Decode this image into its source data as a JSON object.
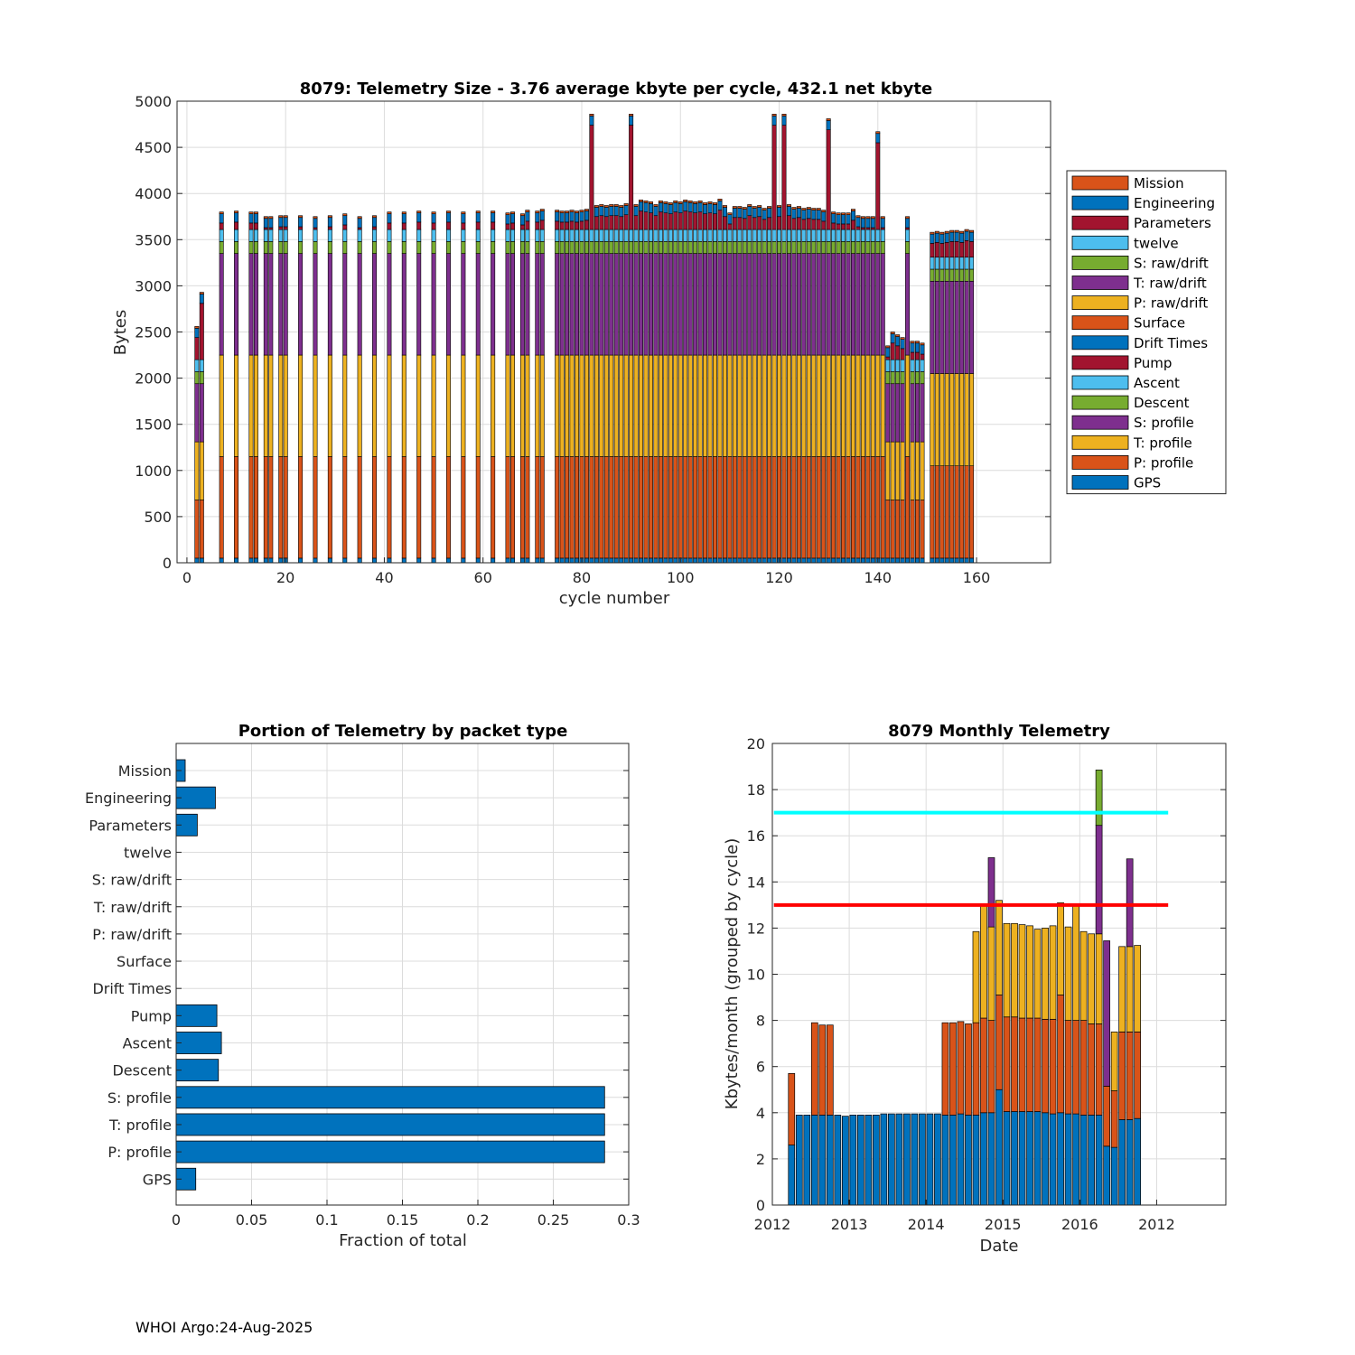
{
  "footer": "WHOI Argo:24-Aug-2025",
  "colors": {
    "Mission": "#d95319",
    "Engineering": "#0072bd",
    "Parameters": "#a2142f",
    "twelve": "#4dbeee",
    "S: raw/drift": "#77ac30",
    "T: raw/drift": "#7e2f8e",
    "P: raw/drift": "#edb120",
    "Surface": "#d95319",
    "Drift Times": "#0072bd",
    "Pump": "#a2142f",
    "Ascent": "#4dbeee",
    "Descent": "#77ac30",
    "S: profile": "#7e2f8e",
    "T: profile": "#edb120",
    "P: profile": "#d95319",
    "GPS": "#0072bd",
    "line_cyan": "#00ffff",
    "line_red": "#ff0000"
  },
  "chart_data": [
    {
      "id": "telemetry-size",
      "type": "bar",
      "stacked": true,
      "title": "8079: Telemetry Size - 3.76 average kbyte per cycle,  432.1 net kbyte",
      "xlabel": "cycle number",
      "ylabel": "Bytes",
      "xlim": [
        -2,
        175
      ],
      "ylim": [
        0,
        5000
      ],
      "xticks": [
        0,
        20,
        40,
        60,
        80,
        100,
        120,
        140,
        160
      ],
      "yticks": [
        0,
        500,
        1000,
        1500,
        2000,
        2500,
        3000,
        3500,
        4000,
        4500,
        5000
      ],
      "legend_position": "outside-right",
      "legend": [
        "Mission",
        "Engineering",
        "Parameters",
        "twelve",
        "S: raw/drift",
        "T: raw/drift",
        "P: raw/drift",
        "Surface",
        "Drift Times",
        "Pump",
        "Ascent",
        "Descent",
        "S: profile",
        "T: profile",
        "P: profile",
        "GPS"
      ],
      "stack_order_bottom_to_top": [
        "GPS",
        "P: profile",
        "T: profile",
        "S: profile",
        "Descent",
        "Ascent",
        "Pump",
        "Engineering",
        "Mission"
      ],
      "profiles": {
        "normal": {
          "GPS": 50,
          "P: profile": 1100,
          "T: profile": 1100,
          "S: profile": 1100,
          "Descent": 130,
          "Ascent": 130,
          "Pump": 90,
          "Engineering": 100,
          "Mission": 20
        },
        "low": {
          "GPS": 50,
          "P: profile": 630,
          "T: profile": 630,
          "S: profile": 630,
          "Descent": 130,
          "Ascent": 130,
          "Pump": 90,
          "Engineering": 100,
          "Mission": 20
        },
        "half": {
          "GPS": 50,
          "P: profile": 1000,
          "T: profile": 1000,
          "S: profile": 1000,
          "Descent": 130,
          "Ascent": 130,
          "Pump": 90,
          "Engineering": 100,
          "Mission": 20
        }
      },
      "cycles": [
        {
          "x": 2,
          "total": 2560,
          "profile": "low"
        },
        {
          "x": 3,
          "total": 2930,
          "profile": "low"
        },
        {
          "x": 7,
          "total": 3800
        },
        {
          "x": 10,
          "total": 3810
        },
        {
          "x": 13,
          "total": 3800
        },
        {
          "x": 14,
          "total": 3800
        },
        {
          "x": 16,
          "total": 3750
        },
        {
          "x": 17,
          "total": 3750
        },
        {
          "x": 19,
          "total": 3760
        },
        {
          "x": 20,
          "total": 3760
        },
        {
          "x": 23,
          "total": 3760
        },
        {
          "x": 26,
          "total": 3750
        },
        {
          "x": 29,
          "total": 3760
        },
        {
          "x": 32,
          "total": 3780
        },
        {
          "x": 35,
          "total": 3750
        },
        {
          "x": 38,
          "total": 3760
        },
        {
          "x": 41,
          "total": 3800
        },
        {
          "x": 44,
          "total": 3800
        },
        {
          "x": 47,
          "total": 3810
        },
        {
          "x": 50,
          "total": 3800
        },
        {
          "x": 53,
          "total": 3810
        },
        {
          "x": 56,
          "total": 3800
        },
        {
          "x": 59,
          "total": 3810
        },
        {
          "x": 62,
          "total": 3810
        },
        {
          "x": 65,
          "total": 3790
        },
        {
          "x": 66,
          "total": 3800
        },
        {
          "x": 68,
          "total": 3780
        },
        {
          "x": 69,
          "total": 3820
        },
        {
          "x": 71,
          "total": 3810
        },
        {
          "x": 72,
          "total": 3830
        },
        {
          "x": 75,
          "total": 3820
        },
        {
          "x": 76,
          "total": 3810
        },
        {
          "x": 77,
          "total": 3810
        },
        {
          "x": 78,
          "total": 3820
        },
        {
          "x": 79,
          "total": 3810
        },
        {
          "x": 80,
          "total": 3820
        },
        {
          "x": 81,
          "total": 3830
        },
        {
          "x": 82,
          "total": 4860
        },
        {
          "x": 83,
          "total": 3870
        },
        {
          "x": 84,
          "total": 3880
        },
        {
          "x": 85,
          "total": 3870
        },
        {
          "x": 86,
          "total": 3880
        },
        {
          "x": 87,
          "total": 3880
        },
        {
          "x": 88,
          "total": 3870
        },
        {
          "x": 89,
          "total": 3890
        },
        {
          "x": 90,
          "total": 4860
        },
        {
          "x": 91,
          "total": 3880
        },
        {
          "x": 92,
          "total": 3930
        },
        {
          "x": 93,
          "total": 3920
        },
        {
          "x": 94,
          "total": 3910
        },
        {
          "x": 95,
          "total": 3880
        },
        {
          "x": 96,
          "total": 3920
        },
        {
          "x": 97,
          "total": 3910
        },
        {
          "x": 98,
          "total": 3900
        },
        {
          "x": 99,
          "total": 3920
        },
        {
          "x": 100,
          "total": 3910
        },
        {
          "x": 101,
          "total": 3930
        },
        {
          "x": 102,
          "total": 3920
        },
        {
          "x": 103,
          "total": 3910
        },
        {
          "x": 104,
          "total": 3920
        },
        {
          "x": 105,
          "total": 3900
        },
        {
          "x": 106,
          "total": 3910
        },
        {
          "x": 107,
          "total": 3900
        },
        {
          "x": 108,
          "total": 3940
        },
        {
          "x": 109,
          "total": 3870
        },
        {
          "x": 110,
          "total": 3790
        },
        {
          "x": 111,
          "total": 3860
        },
        {
          "x": 112,
          "total": 3860
        },
        {
          "x": 113,
          "total": 3850
        },
        {
          "x": 114,
          "total": 3880
        },
        {
          "x": 115,
          "total": 3860
        },
        {
          "x": 116,
          "total": 3870
        },
        {
          "x": 117,
          "total": 3840
        },
        {
          "x": 118,
          "total": 3860
        },
        {
          "x": 119,
          "total": 4860
        },
        {
          "x": 120,
          "total": 3870
        },
        {
          "x": 121,
          "total": 4860
        },
        {
          "x": 122,
          "total": 3880
        },
        {
          "x": 123,
          "total": 3850
        },
        {
          "x": 124,
          "total": 3860
        },
        {
          "x": 125,
          "total": 3840
        },
        {
          "x": 126,
          "total": 3850
        },
        {
          "x": 127,
          "total": 3840
        },
        {
          "x": 128,
          "total": 3840
        },
        {
          "x": 129,
          "total": 3820
        },
        {
          "x": 130,
          "total": 4810
        },
        {
          "x": 131,
          "total": 3800
        },
        {
          "x": 132,
          "total": 3790
        },
        {
          "x": 133,
          "total": 3790
        },
        {
          "x": 134,
          "total": 3790
        },
        {
          "x": 135,
          "total": 3830
        },
        {
          "x": 136,
          "total": 3760
        },
        {
          "x": 137,
          "total": 3740
        },
        {
          "x": 138,
          "total": 3690
        },
        {
          "x": 139,
          "total": 3730
        },
        {
          "x": 140,
          "total": 4670
        },
        {
          "x": 141,
          "total": 3600
        },
        {
          "x": 142,
          "total": 2350,
          "profile": "low"
        },
        {
          "x": 143,
          "total": 2500,
          "profile": "low"
        },
        {
          "x": 144,
          "total": 2470,
          "profile": "low"
        },
        {
          "x": 145,
          "total": 2440,
          "profile": "low"
        },
        {
          "x": 146,
          "total": 3600
        },
        {
          "x": 147,
          "total": 2400,
          "profile": "low"
        },
        {
          "x": 148,
          "total": 2400,
          "profile": "low"
        },
        {
          "x": 149,
          "total": 2380,
          "profile": "low"
        },
        {
          "x": 151,
          "total": 3580,
          "profile": "half"
        },
        {
          "x": 152,
          "total": 3590,
          "profile": "half"
        },
        {
          "x": 153,
          "total": 3580,
          "profile": "half"
        },
        {
          "x": 154,
          "total": 3590,
          "profile": "half"
        },
        {
          "x": 155,
          "total": 3600,
          "profile": "half"
        },
        {
          "x": 156,
          "total": 3600,
          "profile": "half"
        },
        {
          "x": 157,
          "total": 3590,
          "profile": "half"
        },
        {
          "x": 158,
          "total": 3610,
          "profile": "half"
        },
        {
          "x": 159,
          "total": 3600,
          "profile": "half"
        }
      ]
    },
    {
      "id": "portion-by-type",
      "type": "bar",
      "orientation": "horizontal",
      "title": "Portion of Telemetry by packet type",
      "xlabel": "Fraction of total",
      "ylabel": "",
      "xlim": [
        0,
        0.3
      ],
      "xticks": [
        0,
        0.05,
        0.1,
        0.15,
        0.2,
        0.25,
        0.3
      ],
      "xtick_labels": [
        "0",
        "0.05",
        "0.1",
        "0.15",
        "0.2",
        "0.25",
        "0.3"
      ],
      "categories": [
        "Mission",
        "Engineering",
        "Parameters",
        "twelve",
        "S: raw/drift",
        "T: raw/drift",
        "P: raw/drift",
        "Surface",
        "Drift Times",
        "Pump",
        "Ascent",
        "Descent",
        "S: profile",
        "T: profile",
        "P: profile",
        "GPS"
      ],
      "values": [
        0.006,
        0.026,
        0.014,
        0,
        0,
        0,
        0,
        0,
        0,
        0.027,
        0.03,
        0.028,
        0.284,
        0.284,
        0.284,
        0.013
      ]
    },
    {
      "id": "monthly-telemetry",
      "type": "bar",
      "stacked": true,
      "title": "8079 Monthly Telemetry",
      "xlabel": "Date",
      "ylabel": "Kbytes/month (grouped by cycle)",
      "xlim": [
        0,
        59
      ],
      "ylim": [
        0,
        20
      ],
      "yticks": [
        0,
        2,
        4,
        6,
        8,
        10,
        12,
        14,
        16,
        18,
        20
      ],
      "xticks": [
        0,
        10,
        20,
        30,
        40,
        50
      ],
      "xtick_labels": [
        "2012",
        "2013",
        "2014",
        "2015",
        "2016",
        "2012"
      ],
      "hlines": [
        {
          "y": 17,
          "color_key": "line_cyan"
        },
        {
          "y": 13,
          "color_key": "line_red"
        }
      ],
      "months_x_start": 2.5,
      "series": [
        {
          "name": "blue",
          "color_key": "GPS",
          "values": [
            2.6,
            3.9,
            3.9,
            3.9,
            3.9,
            3.9,
            3.9,
            3.85,
            3.9,
            3.9,
            3.9,
            3.9,
            3.95,
            3.95,
            3.95,
            3.95,
            3.95,
            3.95,
            3.95,
            3.95,
            3.9,
            3.9,
            3.95,
            3.9,
            3.9,
            4.0,
            4.0,
            5.0,
            4.05,
            4.05,
            4.05,
            4.05,
            4.05,
            4.0,
            3.95,
            4.0,
            3.95,
            3.95,
            3.9,
            3.9,
            3.9,
            2.55,
            2.5,
            3.7,
            3.7,
            3.75
          ]
        },
        {
          "name": "orange",
          "color_key": "Mission",
          "values": [
            3.1,
            0,
            0,
            4.0,
            3.9,
            3.9,
            0,
            0,
            0,
            0,
            0,
            0,
            0,
            0,
            0,
            0,
            0,
            0,
            0,
            0,
            4.0,
            4.0,
            4.0,
            3.95,
            4.0,
            4.1,
            4.0,
            4.1,
            4.1,
            4.1,
            4.05,
            4.05,
            4.05,
            4.05,
            4.1,
            5.1,
            4.05,
            4.05,
            4.1,
            3.95,
            3.95,
            2.6,
            2.45,
            3.8,
            3.8,
            3.75
          ]
        },
        {
          "name": "yellow",
          "color_key": "T: profile",
          "values": [
            0,
            0,
            0,
            0,
            0,
            0,
            0,
            0,
            0,
            0,
            0,
            0,
            0,
            0,
            0,
            0,
            0,
            0,
            0,
            0,
            0,
            0,
            0,
            0,
            3.95,
            4.9,
            4.05,
            4.1,
            4.05,
            4.05,
            4.05,
            4.0,
            3.85,
            3.95,
            4.05,
            4.0,
            4.05,
            4.95,
            3.85,
            3.9,
            3.9,
            0,
            2.55,
            3.7,
            3.7,
            3.75
          ]
        },
        {
          "name": "purple",
          "color_key": "S: profile",
          "values": [
            0,
            0,
            0,
            0,
            0,
            0,
            0,
            0,
            0,
            0,
            0,
            0,
            0,
            0,
            0,
            0,
            0,
            0,
            0,
            0,
            0,
            0,
            0,
            0,
            0,
            0,
            3.0,
            0,
            0,
            0,
            0,
            0,
            0,
            0,
            0,
            0,
            0,
            0,
            0,
            0,
            4.7,
            6.3,
            0,
            0,
            3.8,
            0
          ]
        },
        {
          "name": "green",
          "color_key": "Descent",
          "values": [
            0,
            0,
            0,
            0,
            0,
            0,
            0,
            0,
            0,
            0,
            0,
            0,
            0,
            0,
            0,
            0,
            0,
            0,
            0,
            0,
            0,
            0,
            0,
            0,
            0,
            0,
            0,
            0,
            0,
            0,
            0,
            0,
            0,
            0,
            0,
            0,
            0,
            0,
            0,
            0,
            2.4,
            0,
            0,
            0,
            0,
            0
          ]
        }
      ]
    }
  ]
}
